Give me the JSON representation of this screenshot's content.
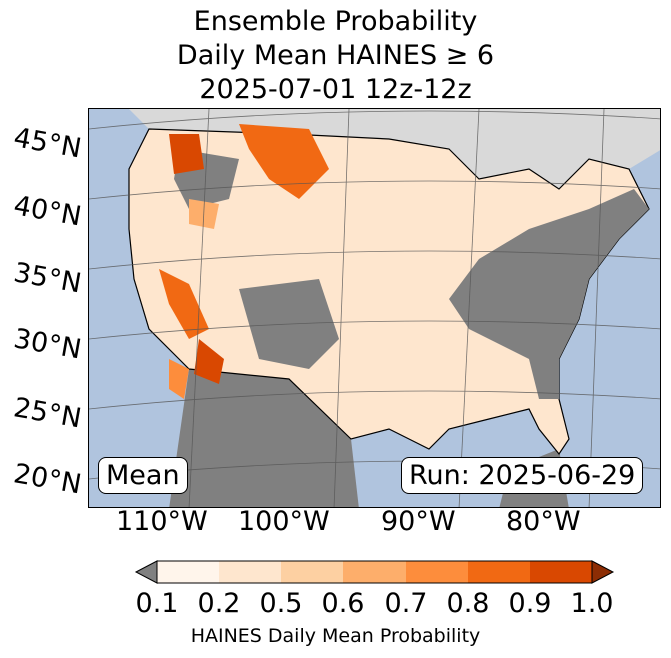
{
  "title": {
    "line1": "Ensemble Probability",
    "line2": "Daily Mean HAINES ≥ 6",
    "line3": "2025-07-01 12z-12z"
  },
  "map": {
    "lat_labels": [
      "45°N",
      "40°N",
      "35°N",
      "30°N",
      "25°N",
      "20°N"
    ],
    "lon_labels": [
      "110°W",
      "100°W",
      "90°W",
      "80°W"
    ],
    "stat_box": "Mean",
    "run_box": "Run: 2025-06-29",
    "colors": {
      "ocean": "#b0c4de",
      "below_threshold": "#808080",
      "graticule": "#555555"
    }
  },
  "colorbar": {
    "ticks": [
      "0.1",
      "0.2",
      "0.5",
      "0.6",
      "0.7",
      "0.8",
      "0.9",
      "1.0"
    ],
    "label": "HAINES Daily Mean Probability",
    "under_color": "#808080",
    "colors": [
      "#fff5eb",
      "#fee6ce",
      "#fdd0a2",
      "#fdae6b",
      "#fd8d3c",
      "#f16913",
      "#d94801"
    ],
    "over_color": "#8c2d04"
  }
}
